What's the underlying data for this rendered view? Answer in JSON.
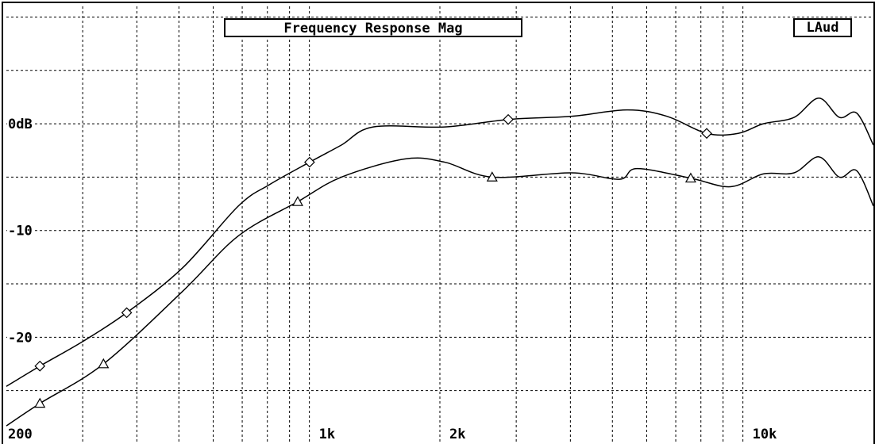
{
  "chart_data": {
    "type": "line",
    "title": "Frequency Response Mag",
    "channel": "LAud",
    "log_x": true,
    "grid": true,
    "xlim": [
      200,
      20000
    ],
    "xticks": [
      200,
      {
        "value": 1000,
        "label": "1k"
      },
      {
        "value": 2000,
        "label": "2k"
      },
      {
        "value": 10000,
        "label": "10k"
      }
    ],
    "xminor": [
      300,
      400,
      500,
      600,
      700,
      800,
      900,
      3000,
      4000,
      5000,
      6000,
      7000,
      8000,
      9000
    ],
    "ylim": [
      -30,
      11
    ],
    "yticks": [
      {
        "value": 0,
        "label": "0dB"
      },
      -10,
      -20
    ],
    "yminor": [
      10,
      5,
      -5,
      -15,
      -25
    ],
    "series": [
      {
        "color": "#000000",
        "marker": "diamond",
        "marker_x": [
          239,
          379,
          1001,
          2875,
          8250
        ],
        "x": [
          200,
          239,
          300,
          379,
          510,
          686,
          809,
          1001,
          1185,
          1403,
          2052,
          2875,
          4027,
          5410,
          6680,
          8250,
          9750,
          11140,
          13120,
          14970,
          16700,
          18300,
          20000
        ],
        "values": [
          -24.6,
          -22.7,
          -20.4,
          -17.7,
          -13.5,
          -7.7,
          -5.7,
          -3.6,
          -2,
          -0.3,
          -0.3,
          0.4,
          0.7,
          1.3,
          0.7,
          -0.9,
          -0.9,
          0,
          0.6,
          2.4,
          0.6,
          1,
          -2
        ]
      },
      {
        "color": "#000000",
        "marker": "triangle",
        "marker_x": [
          239,
          335,
          940,
          2640,
          7580
        ],
        "x": [
          200,
          239,
          335,
          510,
          686,
          940,
          1185,
          1660,
          2052,
          2640,
          4027,
          5190,
          5700,
          7580,
          9360,
          11140,
          13120,
          14970,
          16700,
          18300,
          20000
        ],
        "values": [
          -28.3,
          -26.2,
          -22.5,
          -15.7,
          -10.5,
          -7.3,
          -5,
          -3.3,
          -3.6,
          -5,
          -4.6,
          -5.2,
          -4.2,
          -5.1,
          -5.9,
          -4.7,
          -4.6,
          -3.1,
          -5,
          -4.4,
          -7.7
        ]
      }
    ]
  }
}
